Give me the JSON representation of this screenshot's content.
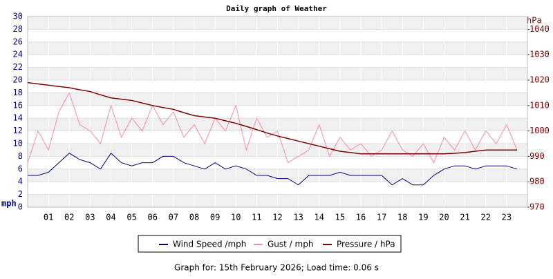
{
  "chart_data": {
    "type": "line",
    "title": "Daily graph of Weather",
    "y_label": "mph",
    "y2_label": "hPa",
    "footer": "Graph for: 15th February 2026; Load time: 0.06 s",
    "x": [
      0,
      0.5,
      1,
      1.5,
      2,
      2.5,
      3,
      3.5,
      4,
      4.5,
      5,
      5.5,
      6,
      6.5,
      7,
      7.5,
      8,
      8.5,
      9,
      9.5,
      10,
      10.5,
      11,
      11.5,
      12,
      12.5,
      13,
      13.5,
      14,
      14.5,
      15,
      15.5,
      16,
      16.5,
      17,
      17.5,
      18,
      18.5,
      19,
      19.5,
      20,
      20.5,
      21,
      21.5,
      22,
      22.5,
      23,
      23.5
    ],
    "xlim": [
      0,
      24
    ],
    "xticks": [
      {
        "value": 1,
        "label": "01"
      },
      {
        "value": 2,
        "label": "02"
      },
      {
        "value": 3,
        "label": "03"
      },
      {
        "value": 4,
        "label": "04"
      },
      {
        "value": 5,
        "label": "05"
      },
      {
        "value": 6,
        "label": "06"
      },
      {
        "value": 7,
        "label": "07"
      },
      {
        "value": 8,
        "label": "08"
      },
      {
        "value": 9,
        "label": "09"
      },
      10,
      11,
      12,
      13,
      14,
      15,
      16,
      17,
      18,
      19,
      20,
      21,
      22,
      23
    ],
    "ylim": [
      0,
      30
    ],
    "yticks": [
      0,
      2,
      4,
      6,
      8,
      10,
      12,
      14,
      16,
      18,
      20,
      22,
      24,
      26,
      28,
      30
    ],
    "y2lim": [
      970,
      1045
    ],
    "y2ticks": [
      970,
      980,
      990,
      1000,
      1010,
      1020,
      1030,
      1040
    ],
    "grid": true,
    "series": [
      {
        "name": "Wind Speed /mph",
        "color": "#000080",
        "values": [
          5,
          5,
          5.5,
          7,
          8.5,
          7.5,
          7,
          6,
          8.5,
          7,
          6.5,
          7,
          7,
          8,
          8,
          7,
          6.5,
          6,
          7,
          6,
          6.5,
          6,
          5,
          5,
          4.5,
          4.5,
          3.5,
          5,
          5,
          5,
          5.5,
          5,
          5,
          5,
          5,
          3.5,
          4.5,
          3.5,
          3.5,
          5,
          6,
          6.5,
          6.5,
          6,
          6.5,
          6.5,
          6.5,
          6
        ]
      },
      {
        "name": "Gust / mph",
        "color": "#f58bb0",
        "values": [
          7,
          12,
          9,
          15,
          18,
          13,
          12,
          10,
          16,
          11,
          14,
          12,
          16,
          13,
          15,
          11,
          13,
          10,
          14,
          12,
          16,
          9,
          14,
          11,
          12,
          7,
          8,
          9,
          13,
          8,
          11,
          9,
          10,
          8,
          9,
          12,
          9,
          8,
          10,
          7,
          11,
          9,
          12,
          9,
          12,
          10,
          13,
          9
        ]
      },
      {
        "name": "Pressure / hPa",
        "color": "#800000",
        "axis": "y2",
        "values": [
          1019,
          1018.5,
          1018,
          1017.5,
          1017,
          1016.2,
          1015.5,
          1014.2,
          1013,
          1012.5,
          1012,
          1011,
          1010,
          1009.2,
          1008.5,
          1007.2,
          1006,
          1005.5,
          1005,
          1004,
          1003,
          1001.8,
          1000.5,
          999.2,
          998,
          997,
          996,
          995,
          994,
          993,
          992,
          991.5,
          991,
          991,
          991,
          991,
          991,
          991,
          991,
          991,
          991,
          991.2,
          991.5,
          992,
          992.5,
          992.5,
          992.5,
          992.5
        ]
      }
    ]
  }
}
